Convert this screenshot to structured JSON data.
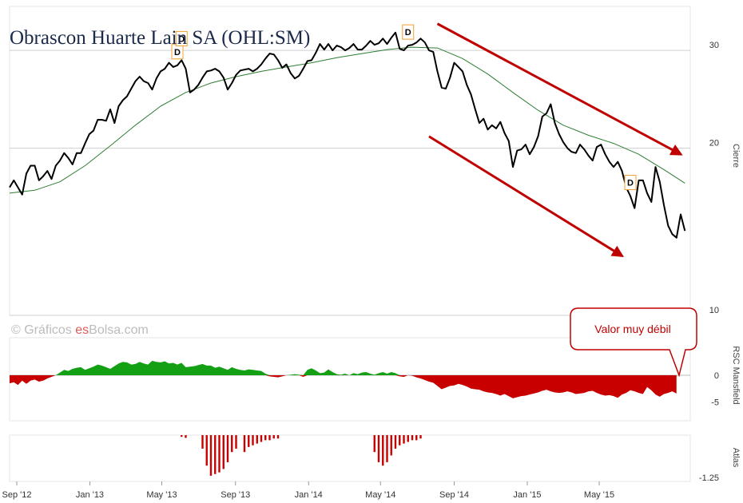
{
  "chart_data": [
    {
      "type": "line",
      "panel": "price",
      "title": "Obrascon Huarte Lain SA (OHL:SM)",
      "ylabel": "Cierre",
      "y_scale": "log",
      "ylim": [
        10,
        36
      ],
      "yticks": [
        10,
        20,
        30
      ],
      "x_tick_labels": [
        "Sep '12",
        "Jan '13",
        "May '13",
        "Sep '13",
        "Jan '14",
        "May '14",
        "Sep '14",
        "Jan '15",
        "May '15"
      ],
      "x_tick_dates": [
        "2012-09-01",
        "2013-01-01",
        "2013-05-01",
        "2013-09-01",
        "2014-01-01",
        "2014-05-01",
        "2014-09-01",
        "2015-01-01",
        "2015-05-01"
      ],
      "xlim": [
        "2012-08-20",
        "2015-09-30"
      ],
      "grid": true,
      "series": [
        {
          "color": "#000000",
          "x": [
            "2012-08-20",
            "2012-08-27",
            "2012-09-03",
            "2012-09-10",
            "2012-09-17",
            "2012-09-24",
            "2012-10-01",
            "2012-10-08",
            "2012-10-15",
            "2012-10-22",
            "2012-10-29",
            "2012-11-05",
            "2012-11-12",
            "2012-11-19",
            "2012-11-26",
            "2012-12-03",
            "2012-12-10",
            "2012-12-17",
            "2012-12-24",
            "2012-12-31",
            "2013-01-07",
            "2013-01-14",
            "2013-01-21",
            "2013-01-28",
            "2013-02-04",
            "2013-02-11",
            "2013-02-18",
            "2013-02-25",
            "2013-03-04",
            "2013-03-11",
            "2013-03-18",
            "2013-03-25",
            "2013-04-01",
            "2013-04-08",
            "2013-04-15",
            "2013-04-22",
            "2013-04-29",
            "2013-05-06",
            "2013-05-13",
            "2013-05-20",
            "2013-05-27",
            "2013-06-03",
            "2013-06-10",
            "2013-06-17",
            "2013-06-24",
            "2013-07-01",
            "2013-07-08",
            "2013-07-15",
            "2013-07-22",
            "2013-07-29",
            "2013-08-05",
            "2013-08-12",
            "2013-08-19",
            "2013-08-26",
            "2013-09-02",
            "2013-09-09",
            "2013-09-16",
            "2013-09-23",
            "2013-09-30",
            "2013-10-07",
            "2013-10-14",
            "2013-10-21",
            "2013-10-28",
            "2013-11-04",
            "2013-11-11",
            "2013-11-18",
            "2013-11-25",
            "2013-12-02",
            "2013-12-09",
            "2013-12-16",
            "2013-12-23",
            "2013-12-30",
            "2014-01-06",
            "2014-01-13",
            "2014-01-20",
            "2014-01-27",
            "2014-02-03",
            "2014-02-10",
            "2014-02-17",
            "2014-02-24",
            "2014-03-03",
            "2014-03-10",
            "2014-03-17",
            "2014-03-24",
            "2014-03-31",
            "2014-04-07",
            "2014-04-14",
            "2014-04-21",
            "2014-04-28",
            "2014-05-05",
            "2014-05-12",
            "2014-05-19",
            "2014-05-26",
            "2014-06-02",
            "2014-06-09",
            "2014-06-16",
            "2014-06-23",
            "2014-06-30",
            "2014-07-07",
            "2014-07-14",
            "2014-07-21",
            "2014-07-28",
            "2014-08-04",
            "2014-08-11",
            "2014-08-18",
            "2014-08-25",
            "2014-09-01",
            "2014-09-08",
            "2014-09-15",
            "2014-09-22",
            "2014-09-29",
            "2014-10-06",
            "2014-10-13",
            "2014-10-20",
            "2014-10-27",
            "2014-11-03",
            "2014-11-10",
            "2014-11-17",
            "2014-11-24",
            "2014-12-01",
            "2014-12-08",
            "2014-12-15",
            "2014-12-22",
            "2014-12-29",
            "2015-01-05",
            "2015-01-12",
            "2015-01-19",
            "2015-01-26",
            "2015-02-02",
            "2015-02-09",
            "2015-02-16",
            "2015-02-23",
            "2015-03-02",
            "2015-03-09",
            "2015-03-16",
            "2015-03-23",
            "2015-03-30",
            "2015-04-06",
            "2015-04-13",
            "2015-04-20",
            "2015-04-27",
            "2015-05-04",
            "2015-05-11",
            "2015-05-18",
            "2015-05-25",
            "2015-06-01",
            "2015-06-08",
            "2015-06-15",
            "2015-06-22",
            "2015-06-29",
            "2015-07-06",
            "2015-07-13",
            "2015-07-20",
            "2015-07-27",
            "2015-08-03",
            "2015-08-10",
            "2015-08-17",
            "2015-08-24",
            "2015-08-31",
            "2015-09-07",
            "2015-09-14",
            "2015-09-21"
          ],
          "values": [
            17.0,
            17.5,
            17.0,
            16.5,
            18.0,
            18.6,
            18.6,
            17.5,
            17.8,
            18.2,
            17.6,
            18.6,
            19.0,
            19.6,
            19.2,
            18.7,
            19.6,
            19.6,
            20.4,
            21.2,
            21.5,
            22.5,
            22.5,
            22.4,
            23.5,
            22.2,
            23.8,
            24.4,
            24.8,
            25.6,
            26.4,
            26.9,
            26.4,
            26.2,
            25.5,
            26.7,
            27.5,
            27.8,
            28.5,
            28.0,
            28.2,
            28.8,
            27.8,
            25.2,
            25.5,
            26.0,
            26.8,
            27.5,
            27.6,
            27.8,
            27.5,
            26.8,
            25.5,
            26.2,
            27.1,
            27.6,
            27.7,
            27.8,
            27.5,
            27.8,
            28.3,
            29.0,
            29.6,
            29.5,
            28.8,
            27.9,
            28.3,
            27.3,
            26.7,
            27.0,
            27.8,
            28.7,
            28.8,
            29.7,
            30.8,
            30.1,
            30.8,
            30.0,
            30.6,
            30.4,
            30.0,
            30.3,
            30.8,
            30.1,
            30.1,
            30.6,
            31.2,
            30.7,
            30.9,
            31.5,
            30.8,
            31.6,
            32.3,
            30.2,
            30.0,
            30.6,
            30.7,
            31.0,
            31.5,
            31.0,
            30.0,
            29.8,
            27.5,
            25.7,
            25.6,
            26.8,
            28.5,
            28.0,
            27.5,
            26.0,
            25.0,
            23.5,
            22.2,
            22.6,
            21.6,
            22.0,
            21.7,
            22.3,
            21.3,
            20.6,
            18.5,
            19.8,
            19.9,
            20.3,
            19.5,
            20.1,
            21.0,
            22.8,
            23.1,
            24.0,
            22.2,
            21.2,
            20.5,
            20.0,
            19.7,
            19.6,
            20.3,
            19.9,
            19.4,
            19.0,
            20.1,
            20.3,
            19.5,
            18.9,
            18.5,
            18.9,
            18.2,
            17.0,
            16.4,
            15.6,
            17.5,
            17.5,
            16.6,
            16.0,
            18.5,
            17.4,
            15.8,
            14.5,
            14.0,
            13.8,
            15.2,
            14.2
          ]
        },
        {
          "color": "#2e7d32",
          "x": [
            "2012-08-20",
            "2012-10-01",
            "2012-11-12",
            "2012-12-24",
            "2013-02-04",
            "2013-03-18",
            "2013-04-29",
            "2013-06-10",
            "2013-07-22",
            "2013-09-02",
            "2013-10-14",
            "2013-11-25",
            "2014-01-06",
            "2014-02-17",
            "2014-03-31",
            "2014-05-12",
            "2014-06-23",
            "2014-08-04",
            "2014-09-15",
            "2014-10-27",
            "2014-12-08",
            "2015-01-19",
            "2015-03-02",
            "2015-04-13",
            "2015-05-25",
            "2015-07-06",
            "2015-08-17",
            "2015-09-21"
          ],
          "values": [
            16.6,
            16.8,
            17.4,
            18.6,
            20.2,
            22.0,
            23.8,
            25.2,
            26.2,
            26.9,
            27.5,
            28.0,
            28.5,
            29.1,
            29.6,
            30.1,
            30.4,
            30.3,
            29.0,
            27.2,
            25.2,
            23.4,
            22.0,
            21.1,
            20.4,
            19.5,
            18.3,
            17.3
          ]
        }
      ],
      "markers": [
        {
          "label": "D",
          "x": "2013-05-27"
        },
        {
          "label": "D",
          "x": "2013-06-03"
        },
        {
          "label": "D",
          "x": "2014-06-16"
        },
        {
          "label": "D",
          "x": "2015-06-22"
        }
      ],
      "annotations": [
        {
          "type": "arrow",
          "color": "#c00000",
          "from": [
            "2014-08-04",
            33.5
          ],
          "to": [
            "2015-09-14",
            19.5
          ]
        },
        {
          "type": "arrow",
          "color": "#c00000",
          "from": [
            "2014-07-21",
            21.0
          ],
          "to": [
            "2015-06-08",
            12.8
          ]
        }
      ]
    },
    {
      "type": "area",
      "panel": "rsc",
      "ylabel": "RSC Mansfield",
      "ylim": [
        -7,
        7
      ],
      "yticks": [
        0,
        -5
      ],
      "positive_color": "#14a014",
      "negative_color": "#c80000",
      "x_start": "2012-08-20",
      "x_step_days": 7,
      "values": [
        -1.5,
        -1.3,
        -1.8,
        -1.0,
        -1.6,
        -1.0,
        -0.8,
        -1.2,
        -1.0,
        -0.6,
        -0.3,
        0.0,
        0.5,
        1.0,
        0.8,
        1.2,
        1.4,
        1.5,
        1.0,
        1.3,
        1.6,
        2.0,
        1.8,
        1.5,
        1.2,
        1.7,
        2.2,
        2.5,
        2.4,
        2.0,
        2.1,
        2.5,
        2.2,
        2.0,
        2.7,
        2.5,
        2.4,
        2.6,
        2.2,
        2.3,
        2.0,
        2.3,
        1.5,
        1.6,
        1.7,
        1.9,
        2.1,
        1.8,
        1.8,
        1.4,
        1.6,
        1.3,
        1.0,
        1.5,
        1.2,
        1.0,
        0.9,
        1.1,
        1.0,
        0.9,
        0.8,
        0.3,
        -0.2,
        -0.3,
        -0.4,
        -0.2,
        0.0,
        0.1,
        0.2,
        0.1,
        -0.3,
        1.0,
        1.3,
        0.9,
        0.4,
        0.5,
        1.1,
        0.6,
        0.2,
        0.1,
        0.3,
        0.0,
        0.4,
        0.2,
        0.5,
        0.6,
        0.3,
        0.1,
        0.4,
        0.6,
        0.3,
        0.6,
        0.4,
        -0.2,
        -0.3,
        0.0,
        -0.1,
        -0.4,
        -0.6,
        -0.9,
        -1.2,
        -1.4,
        -2.0,
        -2.6,
        -2.3,
        -2.0,
        -1.9,
        -1.6,
        -1.8,
        -2.1,
        -2.5,
        -2.6,
        -2.7,
        -3.0,
        -3.2,
        -3.3,
        -3.5,
        -3.8,
        -3.5,
        -3.9,
        -4.3,
        -4.1,
        -3.9,
        -3.8,
        -3.6,
        -3.4,
        -3.2,
        -2.9,
        -2.7,
        -3.0,
        -3.2,
        -3.3,
        -3.2,
        -3.0,
        -3.2,
        -3.5,
        -3.4,
        -3.3,
        -3.0,
        -2.9,
        -3.3,
        -3.6,
        -3.8,
        -3.7,
        -3.9,
        -4.2,
        -3.6,
        -3.3,
        -2.8,
        -3.0,
        -3.3,
        -3.5,
        -2.2,
        -2.8,
        -3.6,
        -4.0,
        -3.5,
        -3.3,
        -3.0,
        -3.4
      ]
    },
    {
      "type": "bar",
      "panel": "atlas",
      "ylabel": "Atlas",
      "ylim": [
        -1.25,
        0
      ],
      "yticks": [
        -1.25
      ],
      "color": "#c80000",
      "x_start": "2013-06-03",
      "x_step_days": 7,
      "values": [
        -0.05,
        -0.08,
        null,
        null,
        null,
        -0.4,
        -0.9,
        -1.2,
        -1.15,
        -1.1,
        -1.0,
        -0.8,
        -0.5,
        -0.4,
        null,
        -0.5,
        -0.35,
        -0.3,
        -0.25,
        -0.2,
        -0.15,
        -0.15,
        -0.1,
        -0.1,
        null,
        null,
        null,
        null,
        null,
        null,
        null,
        null,
        null,
        null,
        null,
        null,
        null,
        null,
        null,
        null,
        null,
        null,
        null,
        null,
        null,
        null,
        -0.5,
        -0.8,
        -0.9,
        -0.8,
        -0.6,
        -0.4,
        -0.3,
        -0.25,
        -0.2,
        -0.15,
        -0.15,
        -0.1
      ]
    }
  ],
  "watermark": {
    "prefix": "© Gráficos ",
    "brand": "es",
    "suffix": "Bolsa.com"
  },
  "callout": {
    "text": "Valor muy débil",
    "border_color": "#c00000"
  },
  "colors": {
    "price_line": "#000000",
    "moving_average": "#2e7d32",
    "arrow": "#c00000",
    "marker_border": "#f0a030",
    "brand": "#e05a5a"
  }
}
